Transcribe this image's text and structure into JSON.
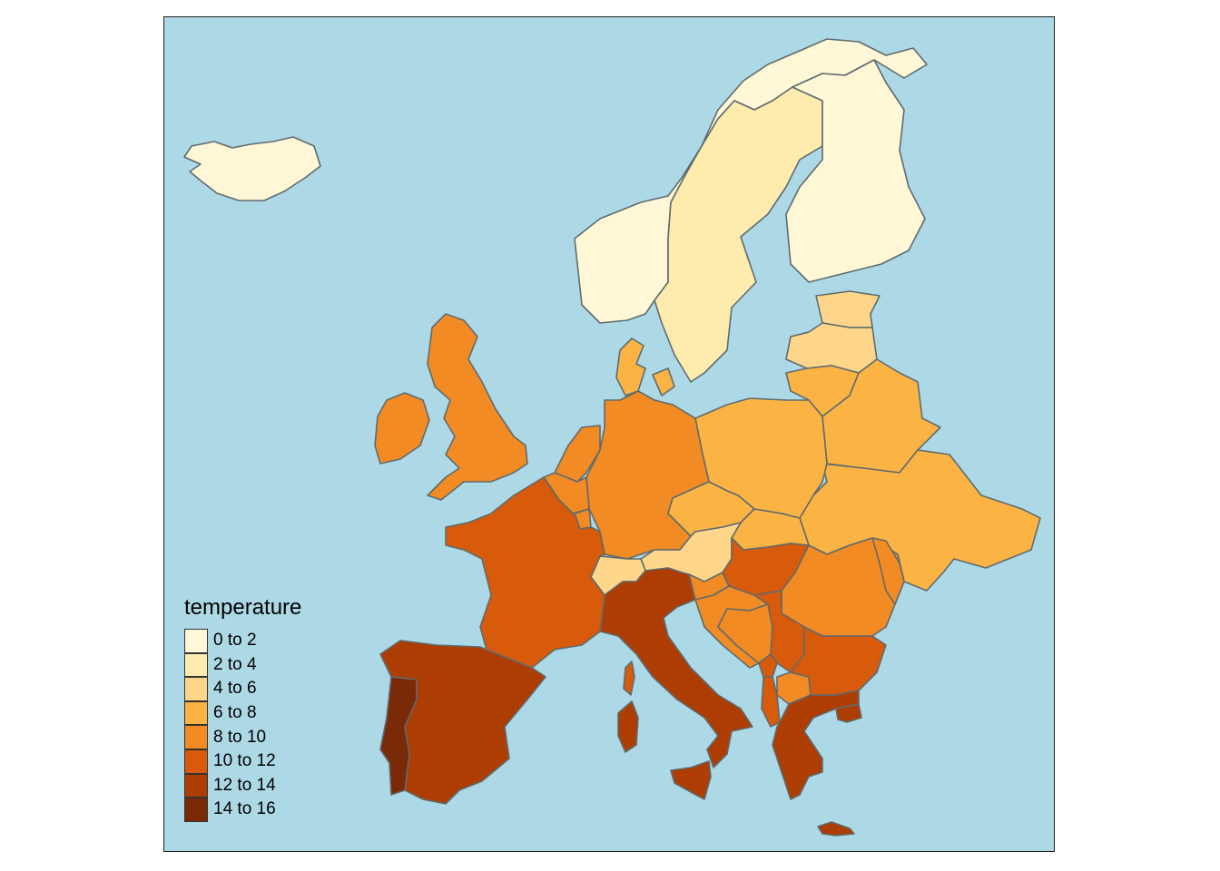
{
  "legend": {
    "title": "temperature",
    "classes": [
      {
        "label": "0 to 2",
        "color": "#FFF7D6"
      },
      {
        "label": "2 to 4",
        "color": "#FEEBAE"
      },
      {
        "label": "4 to 6",
        "color": "#FDD68A"
      },
      {
        "label": "6 to 8",
        "color": "#FBB444"
      },
      {
        "label": "8 to 10",
        "color": "#F28B23"
      },
      {
        "label": "10 to 12",
        "color": "#D85A0B"
      },
      {
        "label": "12 to 14",
        "color": "#AE3D03"
      },
      {
        "label": "14 to 16",
        "color": "#7A2A07"
      }
    ]
  },
  "ocean_color": "#ADD8E6",
  "border_color": "#5F6B6E"
}
